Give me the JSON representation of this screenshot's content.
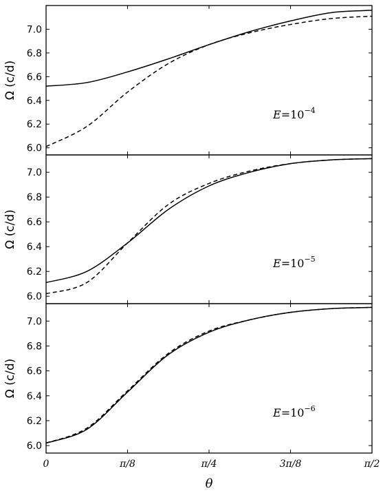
{
  "chart_data": [
    {
      "type": "line",
      "ylabel": "Ω (c/d)",
      "xlabel": "",
      "ylim": [
        5.94,
        7.2
      ],
      "yticks": [
        6.0,
        6.2,
        6.4,
        6.6,
        6.8,
        7.0
      ],
      "xlim": [
        0,
        1.5708
      ],
      "annotation": {
        "prefix": "E",
        "eq": "=10",
        "exp": "−4"
      },
      "series": [
        {
          "style": "solid",
          "x": [
            0,
            0.19635,
            0.3927,
            0.58905,
            0.7854,
            0.98175,
            1.1781,
            1.37445,
            1.5708
          ],
          "y": [
            6.52,
            6.55,
            6.64,
            6.75,
            6.87,
            6.98,
            7.07,
            7.14,
            7.16
          ]
        },
        {
          "style": "dashed",
          "x": [
            0,
            0.19635,
            0.3927,
            0.58905,
            0.7854,
            0.98175,
            1.1781,
            1.37445,
            1.5708
          ],
          "y": [
            6.01,
            6.18,
            6.47,
            6.71,
            6.87,
            6.97,
            7.04,
            7.09,
            7.11
          ]
        }
      ]
    },
    {
      "type": "line",
      "ylabel": "Ω (c/d)",
      "xlabel": "",
      "ylim": [
        5.94,
        7.14
      ],
      "yticks": [
        6.0,
        6.2,
        6.4,
        6.6,
        6.8,
        7.0
      ],
      "xlim": [
        0,
        1.5708
      ],
      "annotation": {
        "prefix": "E",
        "eq": "=10",
        "exp": "−5"
      },
      "series": [
        {
          "style": "solid",
          "x": [
            0,
            0.19635,
            0.3927,
            0.58905,
            0.7854,
            0.98175,
            1.1781,
            1.37445,
            1.5708
          ],
          "y": [
            6.11,
            6.2,
            6.43,
            6.7,
            6.89,
            7.0,
            7.07,
            7.1,
            7.11
          ]
        },
        {
          "style": "dashed",
          "x": [
            0,
            0.19635,
            0.3927,
            0.58905,
            0.7854,
            0.98175,
            1.1781,
            1.37445,
            1.5708
          ],
          "y": [
            6.02,
            6.11,
            6.43,
            6.74,
            6.91,
            7.01,
            7.07,
            7.1,
            7.11
          ]
        }
      ]
    },
    {
      "type": "line",
      "ylabel": "Ω (c/d)",
      "xlabel": "θ",
      "ylim": [
        5.94,
        7.14
      ],
      "yticks": [
        6.0,
        6.2,
        6.4,
        6.6,
        6.8,
        7.0
      ],
      "xlim": [
        0,
        1.5708
      ],
      "xticks": [
        0,
        0.3927,
        0.7854,
        1.1781,
        1.5708
      ],
      "xticklabels": [
        "0",
        "π/8",
        "π/4",
        "3π/8",
        "π/2"
      ],
      "annotation": {
        "prefix": "E",
        "eq": "=10",
        "exp": "−6"
      },
      "series": [
        {
          "style": "solid",
          "x": [
            0,
            0.19635,
            0.3927,
            0.58905,
            0.7854,
            0.98175,
            1.1781,
            1.37445,
            1.5708
          ],
          "y": [
            6.02,
            6.13,
            6.43,
            6.73,
            6.91,
            7.01,
            7.07,
            7.1,
            7.11
          ]
        },
        {
          "style": "dashed",
          "x": [
            0,
            0.19635,
            0.3927,
            0.58905,
            0.7854,
            0.98175,
            1.1781,
            1.37445,
            1.5708
          ],
          "y": [
            6.02,
            6.14,
            6.44,
            6.74,
            6.92,
            7.01,
            7.07,
            7.1,
            7.11
          ]
        }
      ]
    }
  ]
}
